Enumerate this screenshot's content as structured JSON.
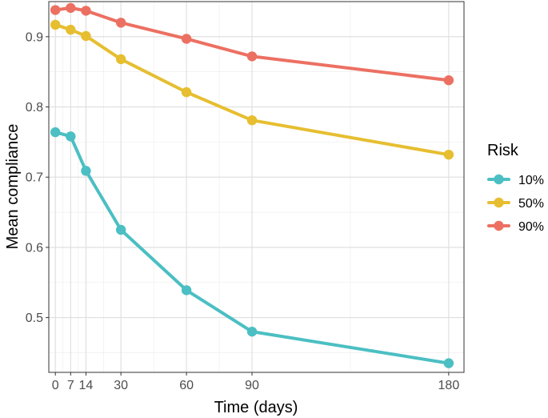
{
  "chart_data": {
    "type": "line",
    "title": "",
    "xlabel": "Time (days)",
    "ylabel": "Mean compliance",
    "x": [
      0,
      7,
      14,
      30,
      60,
      90,
      180
    ],
    "x_tick_labels": [
      "0",
      "7",
      "14",
      "30",
      "60",
      "90",
      "180"
    ],
    "y_ticks": [
      0.5,
      0.6,
      0.7,
      0.8,
      0.9
    ],
    "y_tick_labels": [
      "0.5",
      "0.6",
      "0.7",
      "0.8",
      "0.9"
    ],
    "xlim": [
      -3,
      187
    ],
    "ylim": [
      0.422,
      0.95
    ],
    "grid": true,
    "legend": {
      "title": "Risk",
      "placement": "right"
    },
    "series": [
      {
        "name": "10%",
        "color": "#4bbfc3",
        "values": [
          0.764,
          0.758,
          0.709,
          0.625,
          0.539,
          0.48,
          0.435
        ]
      },
      {
        "name": "50%",
        "color": "#e6be30",
        "values": [
          0.917,
          0.91,
          0.901,
          0.868,
          0.821,
          0.781,
          0.732
        ]
      },
      {
        "name": "90%",
        "color": "#ec7062",
        "values": [
          0.938,
          0.941,
          0.937,
          0.92,
          0.897,
          0.872,
          0.838
        ]
      }
    ]
  }
}
